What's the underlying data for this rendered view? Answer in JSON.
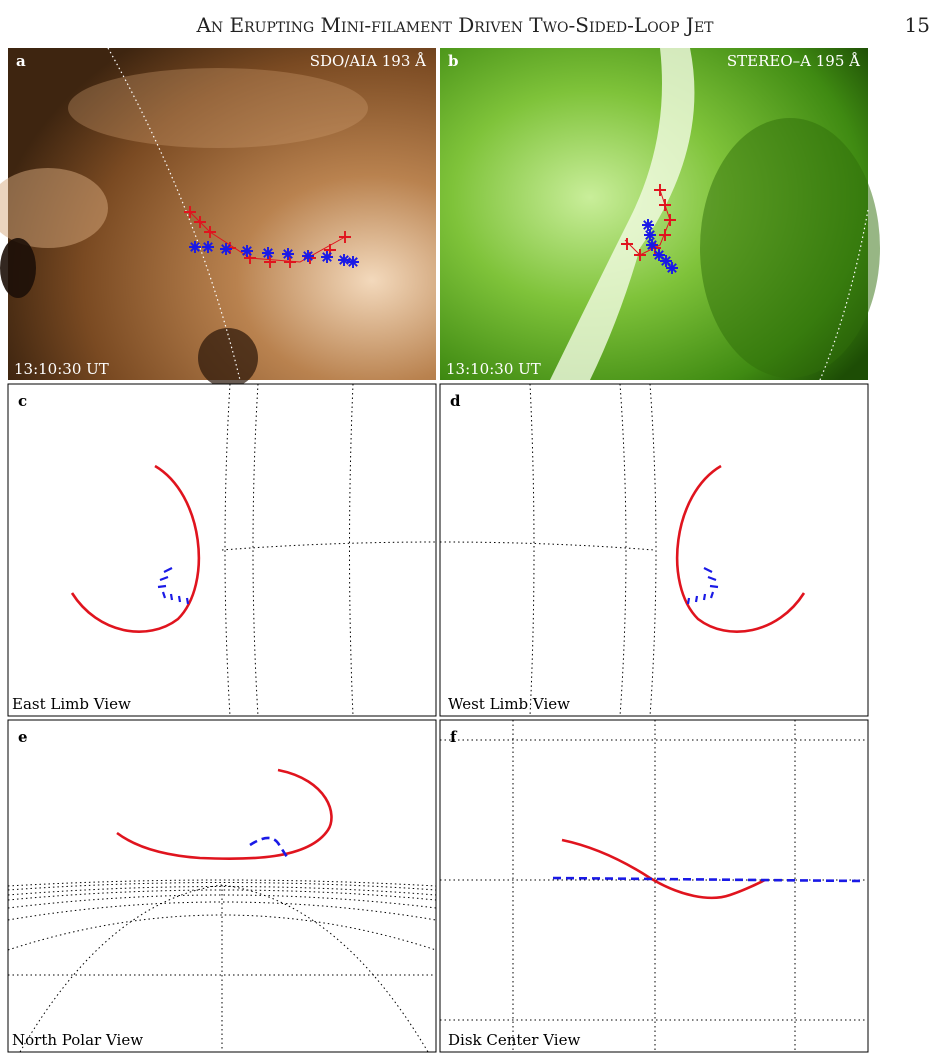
{
  "header": {
    "title": "An Erupting Mini-filament Driven Two-Sided-Loop Jet",
    "page_number": "15"
  },
  "panels": [
    {
      "label": "a",
      "instrument": "SDO/AIA 193 Å",
      "time": "13:10:30 UT"
    },
    {
      "label": "b",
      "instrument": "STEREO–A 195 Å",
      "time": "13:10:30 UT"
    },
    {
      "label": "c",
      "view": "East Limb View"
    },
    {
      "label": "d",
      "view": "West Limb View"
    },
    {
      "label": "e",
      "view": "North Polar View"
    },
    {
      "label": "f",
      "view": "Disk Center View"
    }
  ]
}
